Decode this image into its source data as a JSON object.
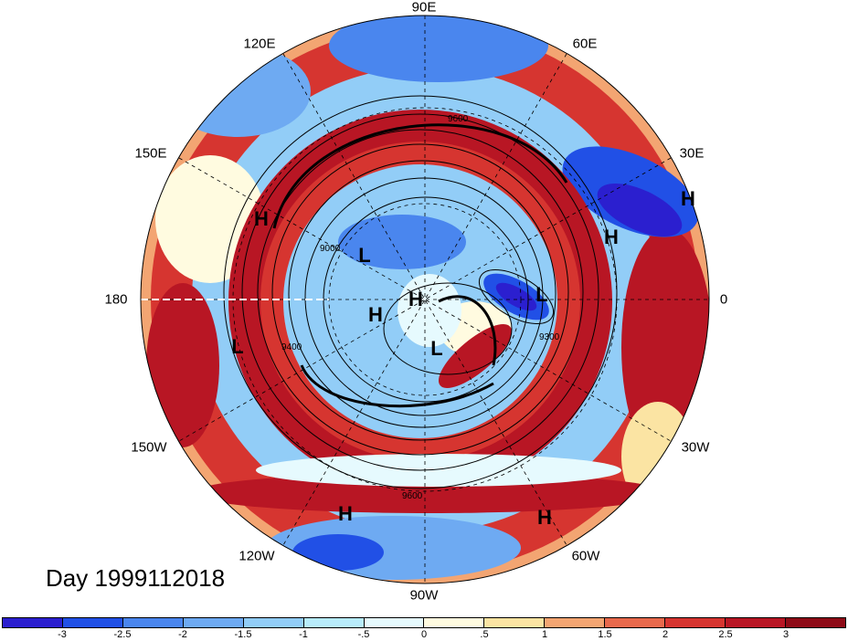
{
  "title": "Day 1999112018",
  "longitude_labels": [
    {
      "id": "90e",
      "text": "90E"
    },
    {
      "id": "60e",
      "text": "60E"
    },
    {
      "id": "120e",
      "text": "120E"
    },
    {
      "id": "30e",
      "text": "30E"
    },
    {
      "id": "150e",
      "text": "150E"
    },
    {
      "id": "180",
      "text": "180"
    },
    {
      "id": "0",
      "text": "0"
    },
    {
      "id": "150w",
      "text": "150W"
    },
    {
      "id": "30w",
      "text": "30W"
    },
    {
      "id": "120w",
      "text": "120W"
    },
    {
      "id": "60w",
      "text": "60W"
    },
    {
      "id": "90w",
      "text": "90W"
    }
  ],
  "pressure_systems": [
    {
      "id": "h1",
      "text": "H"
    },
    {
      "id": "h2",
      "text": "H"
    },
    {
      "id": "h3",
      "text": "H"
    },
    {
      "id": "h4",
      "text": "H"
    },
    {
      "id": "h5",
      "text": "H"
    },
    {
      "id": "h6",
      "text": "H"
    },
    {
      "id": "h7",
      "text": "H"
    },
    {
      "id": "l1",
      "text": "L"
    },
    {
      "id": "l2",
      "text": "L"
    },
    {
      "id": "l3",
      "text": "L"
    },
    {
      "id": "l4",
      "text": "L"
    }
  ],
  "contour_labels": [
    "9600",
    "9300",
    "9400",
    "9600",
    "9000"
  ],
  "colorbar": {
    "ticks": [
      "-3",
      "-2.5",
      "-2",
      "-1.5",
      "-1",
      "-.5",
      "0",
      ".5",
      "1",
      "1.5",
      "2",
      "2.5",
      "3"
    ],
    "colors": [
      "#2b1fcf",
      "#2150e6",
      "#4a86ee",
      "#6eaaf2",
      "#92cdf7",
      "#b8ecfb",
      "#e6fafe",
      "#fffbe0",
      "#fbe4a3",
      "#f3a572",
      "#e8694c",
      "#d63530",
      "#b81624",
      "#8e0b17"
    ]
  },
  "colors": {
    "strong_positive": "#b81624",
    "positive": "#d63530",
    "weak_positive": "#f3a572",
    "neutral": "#fffbe0",
    "weak_negative": "#92cdf7",
    "negative": "#4a86ee",
    "strong_negative": "#2150e6"
  }
}
